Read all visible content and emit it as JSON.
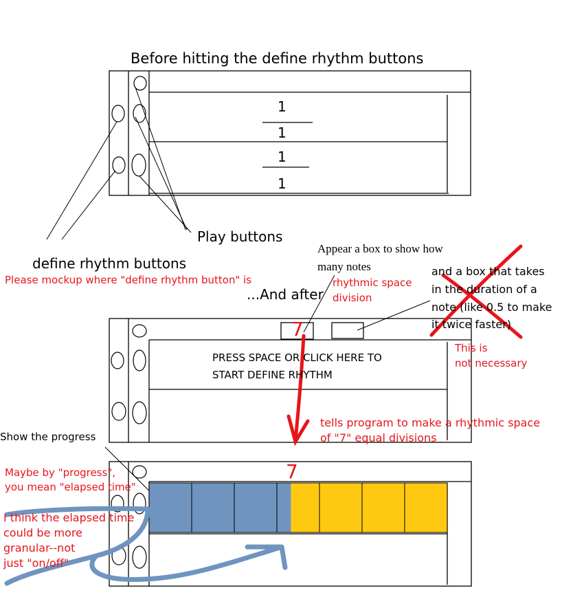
{
  "title": "Before hitting the define rhythm buttons",
  "before_panel": {
    "fractions": [
      {
        "numerator": "1",
        "denominator": "1"
      },
      {
        "numerator": "1",
        "denominator": "1"
      }
    ]
  },
  "labels": {
    "play_buttons": "Play buttons",
    "define_rhythm_buttons": "define rhythm buttons",
    "mockup_request": "Please mockup where \"define rhythm button\" is",
    "and_after": "...And after",
    "appear_box_line1": "Appear a box to show how",
    "appear_box_line2": "many notes",
    "rhythmic_space_line1": "rhythmic space",
    "rhythmic_space_line2": "division",
    "duration_box_line1": "and a box that takes",
    "duration_box_line2": "in the duration of a",
    "duration_box_line3": "note (like 0.5 to make",
    "duration_box_line4": "it twice faster)",
    "not_necessary_line1": "This is",
    "not_necessary_line2": "not necessary",
    "press_space_line1": "PRESS SPACE OR CLICK HERE TO",
    "press_space_line2": "START DEFINE RHYTHM",
    "tells_program_line1": "tells program to make a rhythmic space",
    "tells_program_line2": "of \"7\" equal divisions",
    "show_progress": "Show the progress",
    "maybe_progress_line1": "Maybe by \"progress\",",
    "maybe_progress_line2": "you mean \"elapsed time\"",
    "granular_line1": "I think the elapsed time",
    "granular_line2": "could be more",
    "granular_line3": "granular--not",
    "granular_line4": "just \"on/off\""
  },
  "division_input": {
    "value": "7"
  },
  "progress_panel": {
    "divisions": "7",
    "total_cells": 7,
    "elapsed_cells": 3.33,
    "colors": {
      "elapsed": "#6f94bf",
      "remaining": "#ffc912"
    }
  },
  "colors": {
    "annotation_red": "#e8141b",
    "scribble_blue": "#6f94bf",
    "ink": "#000000"
  }
}
